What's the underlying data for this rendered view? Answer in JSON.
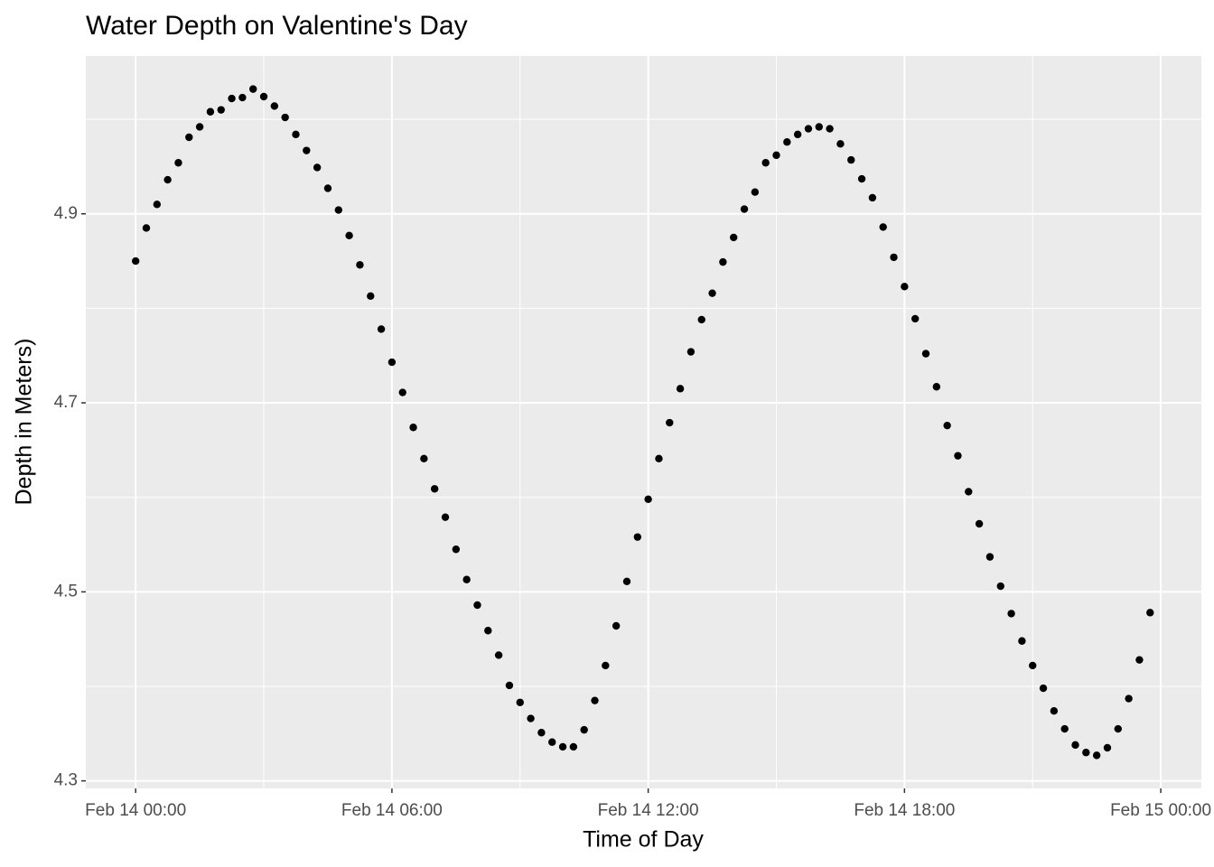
{
  "chart_data": {
    "type": "scatter",
    "title": "Water Depth on Valentine's Day",
    "x_label": "Time of Day",
    "y_label": "Depth in Meters)",
    "color": "#000000",
    "x": [
      "Feb 14 00:00",
      "Feb 14 00:15",
      "Feb 14 00:30",
      "Feb 14 00:45",
      "Feb 14 01:00",
      "Feb 14 01:15",
      "Feb 14 01:30",
      "Feb 14 01:45",
      "Feb 14 02:00",
      "Feb 14 02:15",
      "Feb 14 02:30",
      "Feb 14 02:45",
      "Feb 14 03:00",
      "Feb 14 03:15",
      "Feb 14 03:30",
      "Feb 14 03:45",
      "Feb 14 04:00",
      "Feb 14 04:15",
      "Feb 14 04:30",
      "Feb 14 04:45",
      "Feb 14 05:00",
      "Feb 14 05:15",
      "Feb 14 05:30",
      "Feb 14 05:45",
      "Feb 14 06:00",
      "Feb 14 06:15",
      "Feb 14 06:30",
      "Feb 14 06:45",
      "Feb 14 07:00",
      "Feb 14 07:15",
      "Feb 14 07:30",
      "Feb 14 07:45",
      "Feb 14 08:00",
      "Feb 14 08:15",
      "Feb 14 08:30",
      "Feb 14 08:45",
      "Feb 14 09:00",
      "Feb 14 09:15",
      "Feb 14 09:30",
      "Feb 14 09:45",
      "Feb 14 10:00",
      "Feb 14 10:15",
      "Feb 14 10:30",
      "Feb 14 10:45",
      "Feb 14 11:00",
      "Feb 14 11:15",
      "Feb 14 11:30",
      "Feb 14 11:45",
      "Feb 14 12:00",
      "Feb 14 12:15",
      "Feb 14 12:30",
      "Feb 14 12:45",
      "Feb 14 13:00",
      "Feb 14 13:15",
      "Feb 14 13:30",
      "Feb 14 13:45",
      "Feb 14 14:00",
      "Feb 14 14:15",
      "Feb 14 14:30",
      "Feb 14 14:45",
      "Feb 14 15:00",
      "Feb 14 15:15",
      "Feb 14 15:30",
      "Feb 14 15:45",
      "Feb 14 16:00",
      "Feb 14 16:15",
      "Feb 14 16:30",
      "Feb 14 16:45",
      "Feb 14 17:00",
      "Feb 14 17:15",
      "Feb 14 17:30",
      "Feb 14 17:45",
      "Feb 14 18:00",
      "Feb 14 18:15",
      "Feb 14 18:30",
      "Feb 14 18:45",
      "Feb 14 19:00",
      "Feb 14 19:15",
      "Feb 14 19:30",
      "Feb 14 19:45",
      "Feb 14 20:00",
      "Feb 14 20:15",
      "Feb 14 20:30",
      "Feb 14 20:45",
      "Feb 14 21:00",
      "Feb 14 21:15",
      "Feb 14 21:30",
      "Feb 14 21:45",
      "Feb 14 22:00",
      "Feb 14 22:15",
      "Feb 14 22:30",
      "Feb 14 22:45",
      "Feb 14 23:00",
      "Feb 14 23:15",
      "Feb 14 23:30",
      "Feb 14 23:45"
    ],
    "values": [
      4.85,
      4.885,
      4.91,
      4.936,
      4.954,
      4.981,
      4.992,
      5.008,
      5.01,
      5.022,
      5.023,
      5.032,
      5.024,
      5.014,
      5.002,
      4.984,
      4.967,
      4.949,
      4.927,
      4.904,
      4.877,
      4.846,
      4.813,
      4.778,
      4.743,
      4.711,
      4.674,
      4.641,
      4.609,
      4.579,
      4.545,
      4.513,
      4.486,
      4.459,
      4.433,
      4.401,
      4.383,
      4.366,
      4.351,
      4.341,
      4.336,
      4.336,
      4.354,
      4.385,
      4.422,
      4.464,
      4.511,
      4.558,
      4.598,
      4.641,
      4.679,
      4.715,
      4.754,
      4.788,
      4.816,
      4.849,
      4.875,
      4.905,
      4.923,
      4.954,
      4.962,
      4.976,
      4.984,
      4.99,
      4.992,
      4.99,
      4.974,
      4.957,
      4.937,
      4.917,
      4.886,
      4.854,
      4.823,
      4.789,
      4.752,
      4.717,
      4.676,
      4.644,
      4.606,
      4.572,
      4.537,
      4.506,
      4.477,
      4.448,
      4.422,
      4.398,
      4.374,
      4.355,
      4.338,
      4.33,
      4.327,
      4.335,
      4.355,
      4.387,
      4.428,
      4.478
    ],
    "xlim": [
      "Feb 13 22:50",
      "Feb 15 00:57"
    ],
    "xticks": [
      "Feb 14 00:00",
      "Feb 14 06:00",
      "Feb 14 12:00",
      "Feb 14 18:00",
      "Feb 15 00:00"
    ],
    "x_minor_breaks": [
      "Feb 14 03:00",
      "Feb 14 09:00",
      "Feb 14 15:00",
      "Feb 14 21:00"
    ],
    "ylim": [
      4.292,
      5.067
    ],
    "yticks": [
      4.3,
      4.5,
      4.7,
      4.9
    ],
    "y_minor_breaks": [
      4.4,
      4.6,
      4.8,
      5.0
    ],
    "grid": true
  }
}
